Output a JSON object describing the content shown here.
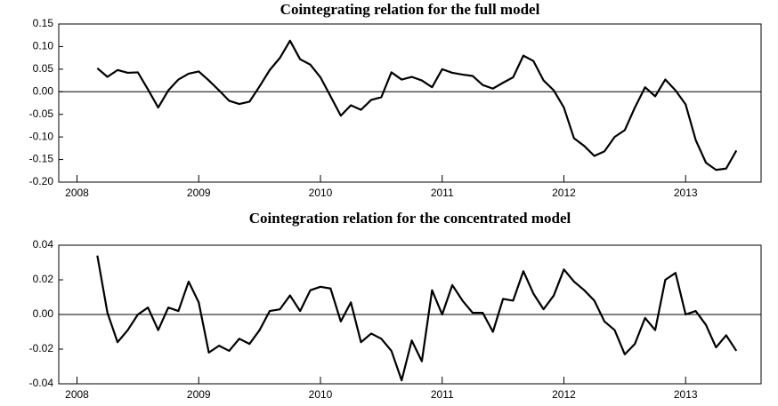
{
  "chart_data": [
    {
      "type": "line",
      "title": "Cointegrating relation for the full model",
      "x": [
        2008.167,
        2008.25,
        2008.333,
        2008.417,
        2008.5,
        2008.583,
        2008.667,
        2008.75,
        2008.833,
        2008.917,
        2009.0,
        2009.083,
        2009.167,
        2009.25,
        2009.333,
        2009.417,
        2009.5,
        2009.583,
        2009.667,
        2009.75,
        2009.833,
        2009.917,
        2010.0,
        2010.083,
        2010.167,
        2010.25,
        2010.333,
        2010.417,
        2010.5,
        2010.583,
        2010.667,
        2010.75,
        2010.833,
        2010.917,
        2011.0,
        2011.083,
        2011.167,
        2011.25,
        2011.333,
        2011.417,
        2011.5,
        2011.583,
        2011.667,
        2011.75,
        2011.833,
        2011.917,
        2012.0,
        2012.083,
        2012.167,
        2012.25,
        2012.333,
        2012.417,
        2012.5,
        2012.583,
        2012.667,
        2012.75,
        2012.833,
        2012.917,
        2013.0,
        2013.083,
        2013.167,
        2013.25,
        2013.333,
        2013.417
      ],
      "values": [
        0.052,
        0.033,
        0.048,
        0.042,
        0.043,
        0.005,
        -0.035,
        0.003,
        0.027,
        0.04,
        0.045,
        0.025,
        0.003,
        -0.02,
        -0.027,
        -0.022,
        0.012,
        0.048,
        0.075,
        0.113,
        0.072,
        0.06,
        0.032,
        -0.01,
        -0.053,
        -0.03,
        -0.04,
        -0.018,
        -0.012,
        0.043,
        0.027,
        0.033,
        0.025,
        0.01,
        0.05,
        0.042,
        0.038,
        0.035,
        0.015,
        0.007,
        0.02,
        0.032,
        0.08,
        0.068,
        0.025,
        0.003,
        -0.035,
        -0.103,
        -0.12,
        -0.142,
        -0.132,
        -0.1,
        -0.085,
        -0.035,
        0.01,
        -0.01,
        0.027,
        0.003,
        -0.028,
        -0.107,
        -0.157,
        -0.173,
        -0.17,
        -0.13
      ],
      "color": "#000000",
      "xlim": [
        2007.85,
        2013.62
      ],
      "xticks": [
        2008,
        2009,
        2010,
        2011,
        2012,
        2013
      ],
      "ylim": [
        -0.2,
        0.15
      ],
      "yticks": [
        0.15,
        {
          "value": 0.1,
          "label": "0.10"
        },
        0.05,
        {
          "value": 0,
          "label": "0.00"
        },
        -0.05,
        {
          "value": -0.1,
          "label": "-0.10"
        },
        -0.15,
        {
          "value": -0.2,
          "label": "-0.20"
        }
      ]
    },
    {
      "type": "line",
      "title": "Cointegration relation for the concentrated model",
      "x": [
        2008.167,
        2008.25,
        2008.333,
        2008.417,
        2008.5,
        2008.583,
        2008.667,
        2008.75,
        2008.833,
        2008.917,
        2009.0,
        2009.083,
        2009.167,
        2009.25,
        2009.333,
        2009.417,
        2009.5,
        2009.583,
        2009.667,
        2009.75,
        2009.833,
        2009.917,
        2010.0,
        2010.083,
        2010.167,
        2010.25,
        2010.333,
        2010.417,
        2010.5,
        2010.583,
        2010.667,
        2010.75,
        2010.833,
        2010.917,
        2011.0,
        2011.083,
        2011.167,
        2011.25,
        2011.333,
        2011.417,
        2011.5,
        2011.583,
        2011.667,
        2011.75,
        2011.833,
        2011.917,
        2012.0,
        2012.083,
        2012.167,
        2012.25,
        2012.333,
        2012.417,
        2012.5,
        2012.583,
        2012.667,
        2012.75,
        2012.833,
        2012.917,
        2013.0,
        2013.083,
        2013.167,
        2013.25,
        2013.333,
        2013.417
      ],
      "values": [
        0.034,
        0.001,
        -0.016,
        -0.009,
        0.0,
        0.004,
        -0.009,
        0.004,
        0.002,
        0.019,
        0.007,
        -0.022,
        -0.018,
        -0.021,
        -0.014,
        -0.017,
        -0.009,
        0.002,
        0.003,
        0.011,
        0.002,
        0.014,
        0.016,
        0.015,
        -0.004,
        0.007,
        -0.016,
        -0.011,
        -0.014,
        -0.021,
        -0.038,
        -0.015,
        -0.027,
        0.014,
        0.0,
        0.017,
        0.008,
        0.001,
        0.001,
        -0.01,
        0.009,
        0.008,
        0.025,
        0.012,
        0.003,
        0.011,
        0.026,
        0.019,
        0.014,
        0.008,
        -0.004,
        -0.009,
        -0.023,
        -0.017,
        -0.002,
        -0.009,
        0.02,
        0.024,
        0.0,
        0.002,
        -0.006,
        -0.019,
        -0.012,
        -0.021
      ],
      "color": "#000000",
      "xlim": [
        2007.85,
        2013.62
      ],
      "xticks": [
        2008,
        2009,
        2010,
        2011,
        2012,
        2013
      ],
      "ylim": [
        -0.04,
        0.04
      ],
      "yticks": [
        {
          "value": 0.04,
          "label": "0.04"
        },
        {
          "value": 0.02,
          "label": "0.02"
        },
        {
          "value": 0,
          "label": "0.00"
        },
        {
          "value": -0.02,
          "label": "-0.02"
        },
        {
          "value": -0.04,
          "label": "-0.04"
        }
      ]
    }
  ]
}
